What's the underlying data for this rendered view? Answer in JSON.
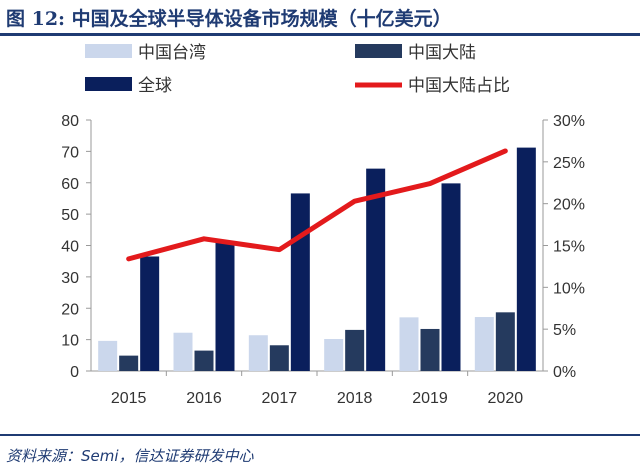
{
  "title": "图 12:  中国及全球半导体设备市场规模（十亿美元）",
  "source": "资料来源：Semi，信达证券研发中心",
  "chart_data": {
    "type": "bar",
    "categories": [
      "2015",
      "2016",
      "2017",
      "2018",
      "2019",
      "2020"
    ],
    "series": [
      {
        "name": "中国台湾",
        "type": "bar",
        "axis": "left",
        "color": "#cbd7ec",
        "values": [
          9.6,
          12.2,
          11.4,
          10.2,
          17.1,
          17.2
        ]
      },
      {
        "name": "中国大陆",
        "type": "bar",
        "axis": "left",
        "color": "#253a5e",
        "values": [
          4.9,
          6.5,
          8.2,
          13.1,
          13.4,
          18.7
        ]
      },
      {
        "name": "全球",
        "type": "bar",
        "axis": "left",
        "color": "#0a1f5c",
        "values": [
          36.5,
          41.2,
          56.6,
          64.5,
          59.8,
          71.2
        ]
      },
      {
        "name": "中国大陆占比",
        "type": "line",
        "axis": "right",
        "color": "#e31a1c",
        "values": [
          13.4,
          15.8,
          14.5,
          20.3,
          22.4,
          26.3
        ]
      }
    ],
    "ylim": [
      0,
      80
    ],
    "yticks": [
      0,
      10,
      20,
      30,
      40,
      50,
      60,
      70,
      80
    ],
    "y2lim": [
      0,
      30
    ],
    "y2ticks": [
      "0%",
      "5%",
      "10%",
      "15%",
      "20%",
      "25%",
      "30%"
    ],
    "legend_position": "top",
    "grid": false
  }
}
